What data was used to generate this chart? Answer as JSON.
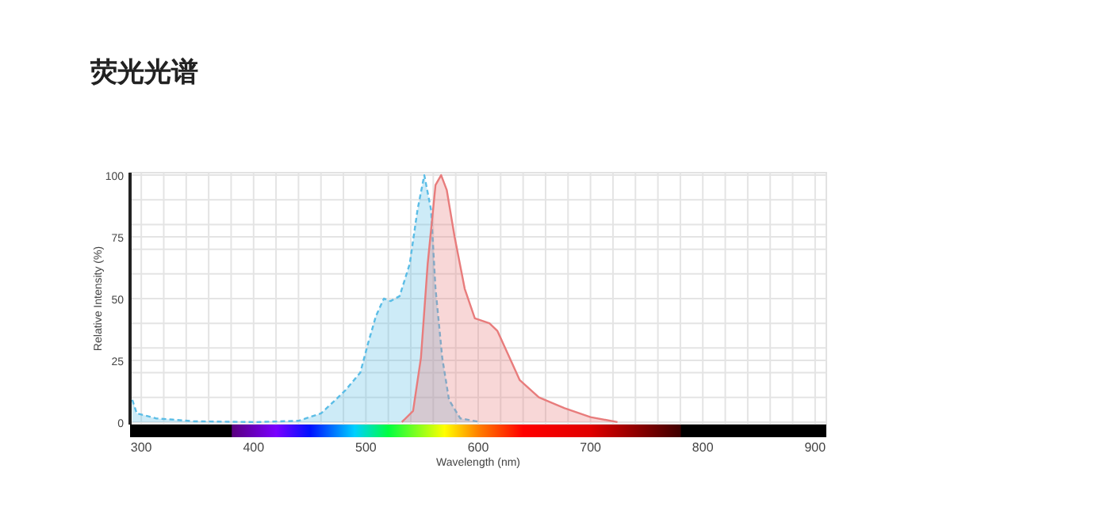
{
  "chart_data": {
    "type": "area",
    "title": "荧光光谱",
    "xlabel": "Wavelength (nm)",
    "ylabel": "Relative Intensity (%)",
    "xlim": [
      290,
      910
    ],
    "ylim": [
      -1,
      101
    ],
    "xticks": [
      300,
      {
        "value": 320,
        "label": null
      },
      {
        "value": 340,
        "label": null
      },
      {
        "value": 360,
        "label": null
      },
      {
        "value": 380,
        "label": null
      },
      400,
      {
        "value": 420,
        "label": null
      },
      {
        "value": 440,
        "label": null
      },
      {
        "value": 460,
        "label": null
      },
      {
        "value": 480,
        "label": null
      },
      500,
      {
        "value": 520,
        "label": null
      },
      {
        "value": 540,
        "label": null
      },
      {
        "value": 560,
        "label": null
      },
      {
        "value": 580,
        "label": null
      },
      600,
      {
        "value": 620,
        "label": null
      },
      {
        "value": 640,
        "label": null
      },
      {
        "value": 660,
        "label": null
      },
      {
        "value": 680,
        "label": null
      },
      700,
      {
        "value": 720,
        "label": null
      },
      {
        "value": 740,
        "label": null
      },
      {
        "value": 760,
        "label": null
      },
      {
        "value": 780,
        "label": null
      },
      800,
      {
        "value": 820,
        "label": null
      },
      {
        "value": 840,
        "label": null
      },
      {
        "value": 860,
        "label": null
      },
      {
        "value": 880,
        "label": null
      },
      900
    ],
    "yticks": [
      0,
      {
        "value": 10,
        "label": null
      },
      {
        "value": 20,
        "label": null
      },
      25,
      {
        "value": 30,
        "label": null
      },
      {
        "value": 40,
        "label": null
      },
      50,
      {
        "value": 60,
        "label": null
      },
      {
        "value": 70,
        "label": null
      },
      75,
      {
        "value": 80,
        "label": null
      },
      {
        "value": 90,
        "label": null
      },
      100
    ],
    "grid": true,
    "series": [
      {
        "color": "#5bbde6",
        "line_style": "dashed",
        "x": [
          292,
          296,
          305,
          313,
          328,
          347,
          402,
          440,
          460,
          473,
          482,
          495,
          502,
          509,
          516,
          522,
          530,
          539,
          546,
          552,
          558,
          562,
          568,
          574,
          584,
          602
        ],
        "values": [
          9,
          3.5,
          2.5,
          1.5,
          1,
          0.3,
          0,
          0.5,
          3.5,
          9,
          13,
          20,
          32,
          43,
          50,
          49,
          51,
          64,
          86,
          100,
          86,
          54,
          26,
          9,
          1.5,
          0
        ]
      },
      {
        "color": "#e87c7c",
        "line_style": "solid",
        "x": [
          532,
          542,
          549,
          555,
          562,
          567,
          572,
          579,
          588,
          597,
          610,
          617,
          626,
          637,
          654,
          677,
          700,
          724
        ],
        "values": [
          0,
          4.5,
          26,
          64,
          96,
          100,
          94,
          75,
          54,
          42,
          40,
          37,
          28,
          17,
          10,
          5.6,
          2,
          0
        ]
      }
    ]
  }
}
